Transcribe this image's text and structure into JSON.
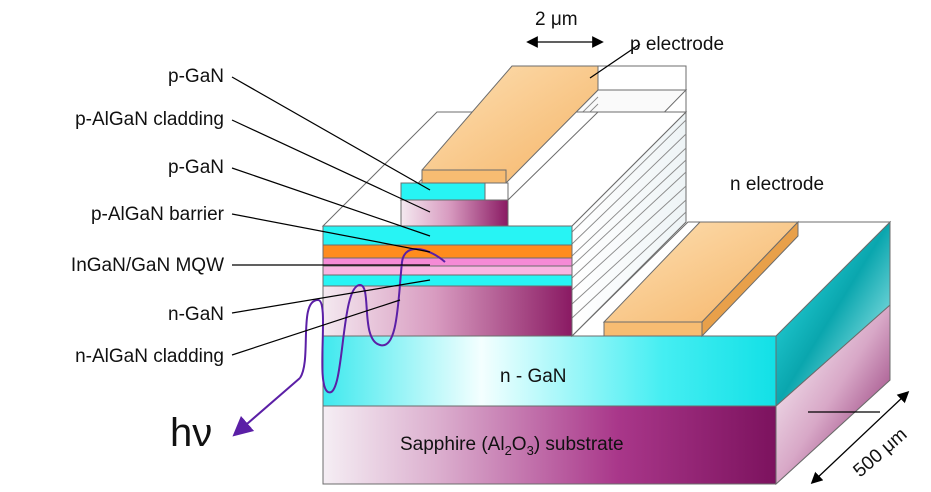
{
  "labels": {
    "scale_top": "2 μm",
    "p_electrode": "p electrode",
    "n_electrode": "n electrode",
    "layer_p_gan_top": "p-GaN",
    "layer_p_algan_cladding": "p-AlGaN cladding",
    "layer_p_gan": "p-GaN",
    "layer_p_algan_barrier": "p-AlGaN barrier",
    "layer_mqw": "InGaN/GaN MQW",
    "layer_n_gan": "n-GaN",
    "layer_n_algan_cladding": "n-AlGaN cladding",
    "n_gan_block": "n - GaN",
    "substrate_prefix": "Sapphire (Al",
    "substrate_sub1": "2",
    "substrate_mid": "O",
    "substrate_sub2": "3",
    "substrate_suffix": ") substrate",
    "photon": "hν",
    "scale_depth": "500 μm"
  },
  "colors": {
    "cyan": "#27f4f4",
    "orange_mqw": "#ff8c1e",
    "pink_mqw": "#f58ad6",
    "magenta_substrate": "#9c1f79",
    "electrode": "#f7bc72",
    "wave": "#5b1fa6"
  }
}
